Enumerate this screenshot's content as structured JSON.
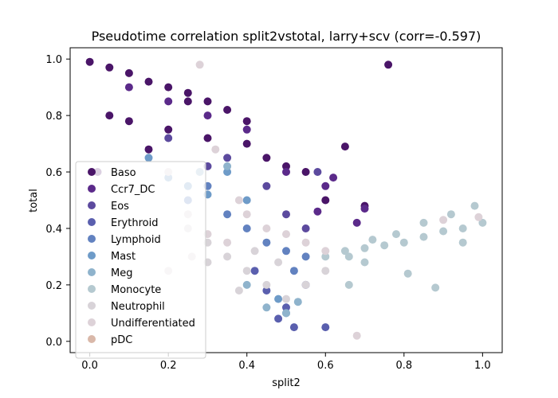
{
  "chart_data": {
    "type": "scatter",
    "title": "Pseudotime correlation split2vstotal, larry+scv (corr=-0.597)",
    "xlabel": "split2",
    "ylabel": "total",
    "xlim": [
      -0.05,
      1.05
    ],
    "ylim": [
      -0.04,
      1.04
    ],
    "xticks": [
      "0.0",
      "0.2",
      "0.4",
      "0.6",
      "0.8",
      "1.0"
    ],
    "yticks": [
      "0.0",
      "0.2",
      "0.4",
      "0.6",
      "0.8",
      "1.0"
    ],
    "grid": false,
    "legend_position": "lower-left",
    "series": [
      {
        "name": "Baso",
        "color": "#4a1568",
        "points": [
          [
            0.0,
            0.99
          ],
          [
            0.05,
            0.97
          ],
          [
            0.1,
            0.95
          ],
          [
            0.15,
            0.92
          ],
          [
            0.2,
            0.9
          ],
          [
            0.25,
            0.88
          ],
          [
            0.3,
            0.85
          ],
          [
            0.35,
            0.82
          ],
          [
            0.05,
            0.8
          ],
          [
            0.1,
            0.78
          ],
          [
            0.2,
            0.75
          ],
          [
            0.3,
            0.72
          ],
          [
            0.4,
            0.7
          ],
          [
            0.45,
            0.65
          ],
          [
            0.5,
            0.62
          ],
          [
            0.55,
            0.6
          ],
          [
            0.02,
            0.6
          ],
          [
            0.15,
            0.68
          ],
          [
            0.25,
            0.85
          ],
          [
            0.4,
            0.78
          ],
          [
            0.76,
            0.98
          ],
          [
            0.6,
            0.5
          ],
          [
            0.7,
            0.48
          ],
          [
            0.65,
            0.69
          ]
        ]
      },
      {
        "name": "Ccr7_DC",
        "color": "#5b2a8a",
        "points": [
          [
            0.1,
            0.9
          ],
          [
            0.2,
            0.85
          ],
          [
            0.3,
            0.8
          ],
          [
            0.4,
            0.75
          ],
          [
            0.5,
            0.6
          ],
          [
            0.6,
            0.55
          ],
          [
            0.7,
            0.47
          ],
          [
            0.68,
            0.42
          ],
          [
            0.58,
            0.46
          ],
          [
            0.62,
            0.58
          ]
        ]
      },
      {
        "name": "Eos",
        "color": "#5c4a9e",
        "points": [
          [
            0.2,
            0.72
          ],
          [
            0.35,
            0.65
          ],
          [
            0.45,
            0.55
          ],
          [
            0.5,
            0.45
          ],
          [
            0.55,
            0.4
          ],
          [
            0.58,
            0.6
          ],
          [
            0.3,
            0.62
          ]
        ]
      },
      {
        "name": "Erythroid",
        "color": "#5a5fae",
        "points": [
          [
            0.45,
            0.18
          ],
          [
            0.5,
            0.12
          ],
          [
            0.52,
            0.05
          ],
          [
            0.48,
            0.08
          ],
          [
            0.55,
            0.2
          ],
          [
            0.6,
            0.05
          ],
          [
            0.42,
            0.25
          ]
        ]
      },
      {
        "name": "Lymphoid",
        "color": "#6282c0",
        "points": [
          [
            0.25,
            0.5
          ],
          [
            0.3,
            0.55
          ],
          [
            0.35,
            0.45
          ],
          [
            0.4,
            0.4
          ],
          [
            0.45,
            0.35
          ],
          [
            0.5,
            0.32
          ],
          [
            0.55,
            0.3
          ],
          [
            0.52,
            0.25
          ]
        ]
      },
      {
        "name": "Mast",
        "color": "#6e9bc8",
        "points": [
          [
            0.15,
            0.65
          ],
          [
            0.2,
            0.58
          ],
          [
            0.25,
            0.55
          ],
          [
            0.3,
            0.52
          ],
          [
            0.35,
            0.6
          ],
          [
            0.4,
            0.5
          ],
          [
            0.48,
            0.15
          ],
          [
            0.5,
            0.1
          ]
        ]
      },
      {
        "name": "Meg",
        "color": "#8fb3cc",
        "points": [
          [
            0.4,
            0.2
          ],
          [
            0.45,
            0.12
          ],
          [
            0.5,
            0.1
          ],
          [
            0.35,
            0.62
          ],
          [
            0.28,
            0.6
          ],
          [
            0.53,
            0.14
          ]
        ]
      },
      {
        "name": "Monocyte",
        "color": "#b5c9d0",
        "points": [
          [
            0.6,
            0.3
          ],
          [
            0.65,
            0.32
          ],
          [
            0.7,
            0.33
          ],
          [
            0.75,
            0.34
          ],
          [
            0.8,
            0.35
          ],
          [
            0.85,
            0.37
          ],
          [
            0.9,
            0.39
          ],
          [
            0.95,
            0.4
          ],
          [
            1.0,
            0.42
          ],
          [
            0.98,
            0.48
          ],
          [
            0.92,
            0.45
          ],
          [
            0.85,
            0.42
          ],
          [
            0.78,
            0.38
          ],
          [
            0.72,
            0.36
          ],
          [
            0.66,
            0.3
          ],
          [
            0.88,
            0.19
          ],
          [
            0.81,
            0.24
          ],
          [
            0.66,
            0.2
          ],
          [
            0.7,
            0.28
          ],
          [
            0.95,
            0.35
          ]
        ]
      },
      {
        "name": "Neutrophil",
        "color": "#d8d3d8",
        "points": [
          [
            0.35,
            0.3
          ],
          [
            0.4,
            0.25
          ],
          [
            0.45,
            0.2
          ],
          [
            0.5,
            0.15
          ],
          [
            0.55,
            0.2
          ],
          [
            0.3,
            0.35
          ],
          [
            0.25,
            0.4
          ],
          [
            0.38,
            0.18
          ],
          [
            0.6,
            0.25
          ],
          [
            0.42,
            0.32
          ],
          [
            0.48,
            0.28
          ],
          [
            0.3,
            0.28
          ]
        ]
      },
      {
        "name": "Undifferentiated",
        "color": "#ddd2d8",
        "points": [
          [
            0.2,
            0.6
          ],
          [
            0.25,
            0.45
          ],
          [
            0.3,
            0.38
          ],
          [
            0.35,
            0.35
          ],
          [
            0.4,
            0.45
          ],
          [
            0.45,
            0.4
          ],
          [
            0.5,
            0.38
          ],
          [
            0.55,
            0.35
          ],
          [
            0.6,
            0.32
          ],
          [
            0.32,
            0.68
          ],
          [
            0.38,
            0.5
          ],
          [
            0.28,
            0.98
          ],
          [
            0.68,
            0.02
          ],
          [
            0.2,
            0.25
          ],
          [
            0.26,
            0.3
          ],
          [
            0.9,
            0.43
          ],
          [
            0.99,
            0.44
          ]
        ]
      },
      {
        "name": "pDC",
        "color": "#d9b8a9",
        "points": []
      }
    ]
  }
}
